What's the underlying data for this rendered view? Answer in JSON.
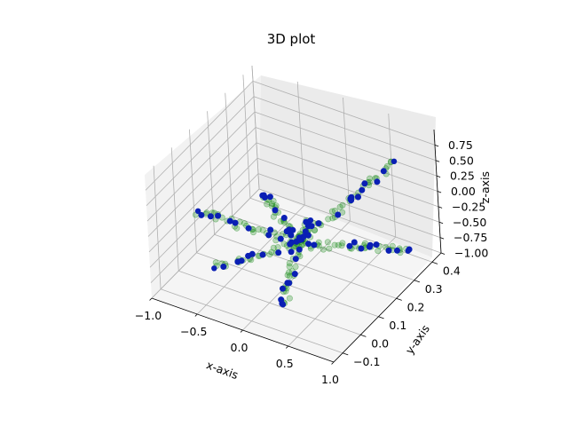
{
  "chart_data": {
    "type": "scatter",
    "title": "3D plot",
    "xlabel": "x-axis",
    "ylabel": "y-axis",
    "zlabel": "z-axis",
    "xlim": [
      -1.0,
      1.0
    ],
    "ylim": [
      -0.15,
      0.45
    ],
    "zlim": [
      -1.0,
      1.0
    ],
    "x_ticks": [
      "−1.0",
      "−0.5",
      "0.0",
      "0.5",
      "1.0"
    ],
    "y_ticks": [
      "−0.1",
      "0.0",
      "0.1",
      "0.2",
      "0.3",
      "0.4"
    ],
    "z_ticks": [
      "−1.00",
      "−0.75",
      "−0.50",
      "−0.25",
      "0.00",
      "0.25",
      "0.50",
      "0.75"
    ],
    "grid": true,
    "projection": "3d",
    "series": [
      {
        "color": "#008000",
        "alpha": 0.25,
        "arms": [
          {
            "from": [
              0.05,
              0.15,
              -0.45
            ],
            "to": [
              0.85,
              0.3,
              0.85
            ]
          },
          {
            "from": [
              0.05,
              0.15,
              -0.45
            ],
            "to": [
              -0.1,
              0.05,
              0.55
            ]
          },
          {
            "from": [
              0.05,
              0.15,
              -0.45
            ],
            "to": [
              -0.85,
              0.05,
              -0.1
            ]
          },
          {
            "from": [
              0.05,
              0.15,
              -0.45
            ],
            "to": [
              0.95,
              0.3,
              -0.55
            ]
          },
          {
            "from": [
              0.05,
              0.15,
              -0.45
            ],
            "to": [
              0.15,
              0.0,
              -0.95
            ]
          },
          {
            "from": [
              0.05,
              0.15,
              -0.45
            ],
            "to": [
              -0.6,
              0.0,
              -0.75
            ]
          },
          {
            "from": [
              0.05,
              0.15,
              -0.45
            ],
            "to": [
              0.3,
              0.1,
              0.2
            ]
          }
        ]
      },
      {
        "color": "#0a1fb4",
        "alpha": 1.0,
        "arms": [
          {
            "from": [
              0.05,
              0.15,
              -0.45
            ],
            "to": [
              0.85,
              0.3,
              0.85
            ]
          },
          {
            "from": [
              0.05,
              0.15,
              -0.45
            ],
            "to": [
              -0.1,
              0.05,
              0.55
            ]
          },
          {
            "from": [
              0.05,
              0.15,
              -0.45
            ],
            "to": [
              -0.85,
              0.05,
              -0.1
            ]
          },
          {
            "from": [
              0.05,
              0.15,
              -0.45
            ],
            "to": [
              0.95,
              0.3,
              -0.55
            ]
          },
          {
            "from": [
              0.05,
              0.15,
              -0.45
            ],
            "to": [
              0.15,
              0.0,
              -0.95
            ]
          },
          {
            "from": [
              0.05,
              0.15,
              -0.45
            ],
            "to": [
              -0.6,
              0.0,
              -0.75
            ]
          },
          {
            "from": [
              0.05,
              0.15,
              -0.45
            ],
            "to": [
              0.3,
              0.1,
              0.2
            ]
          }
        ]
      }
    ]
  }
}
